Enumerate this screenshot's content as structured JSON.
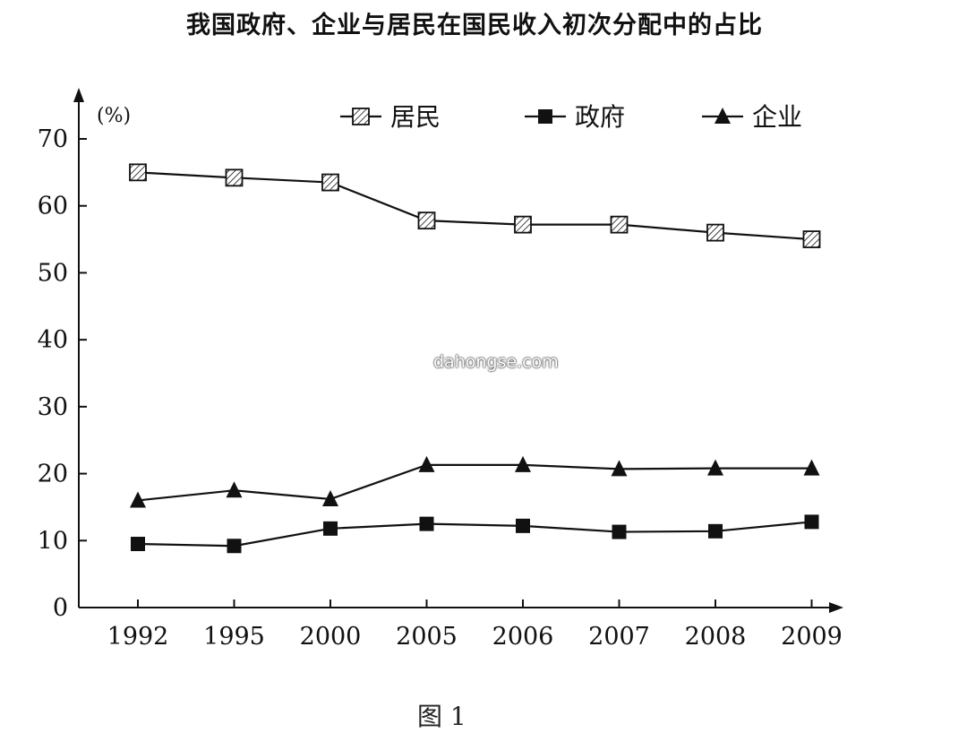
{
  "chart_data": {
    "type": "line",
    "title": "我国政府、企业与居民在国民收入初次分配中的占比",
    "ylabel": "(%)",
    "xlabel": "",
    "categories": [
      "1992",
      "1995",
      "2000",
      "2005",
      "2006",
      "2007",
      "2008",
      "2009"
    ],
    "ylim": [
      0,
      70
    ],
    "yticks": [
      0,
      10,
      20,
      30,
      40,
      50,
      60,
      70
    ],
    "grid": false,
    "legend_position": "top-right",
    "series": [
      {
        "name": "居民",
        "marker": "hatched-square",
        "values": [
          65.0,
          64.2,
          63.5,
          57.8,
          57.2,
          57.2,
          56.0,
          55.0
        ]
      },
      {
        "name": "政府",
        "marker": "filled-square",
        "values": [
          9.5,
          9.2,
          11.8,
          12.5,
          12.2,
          11.3,
          11.4,
          12.8
        ]
      },
      {
        "name": "企业",
        "marker": "filled-triangle",
        "values": [
          16.0,
          17.5,
          16.2,
          21.3,
          21.3,
          20.7,
          20.8,
          20.8
        ]
      }
    ]
  },
  "watermark": "dahongse.com",
  "caption": "图 1",
  "colors": {
    "line": "#111111",
    "hatch_fill": "#ffffff"
  }
}
